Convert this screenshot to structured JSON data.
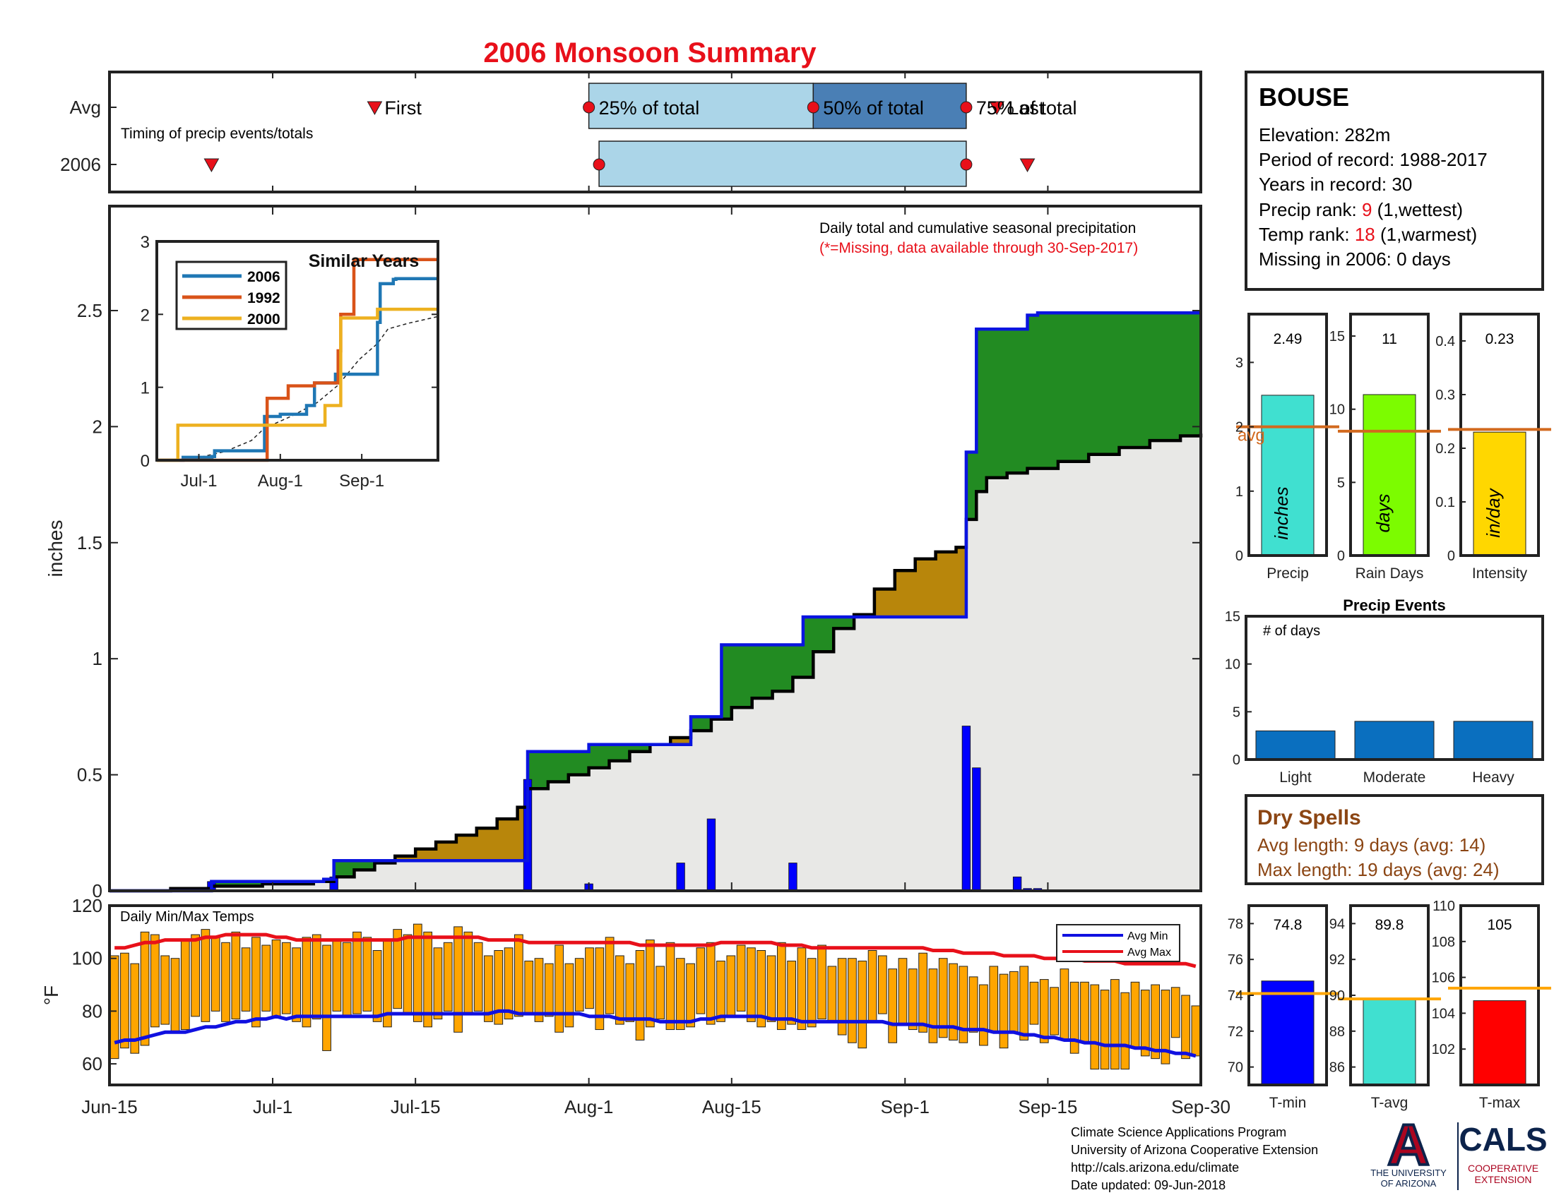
{
  "page": {
    "title": "2006 Monsoon Summary",
    "footer_lines": [
      "Climate Science Applications Program",
      "University of Arizona Cooperative Extension",
      "http://cals.arizona.edu/climate",
      " Date updated: 09-Jun-2018"
    ],
    "logo_ua": {
      "letter": "A",
      "line1": "THE UNIVERSITY",
      "line2": "OF ARIZONA"
    },
    "logo_cals": {
      "big": "CALS",
      "line1": "COOPERATIVE",
      "line2": "EXTENSION"
    },
    "colors": {
      "title": "#e8101a",
      "red_text": "#e8101a",
      "brown_text": "#8b4513"
    }
  },
  "station": {
    "name": "BOUSE",
    "lines": [
      "Elevation: 282m",
      "Period of record: 1988-2017",
      "Years in record: 30"
    ],
    "precip_rank_label": "Precip rank: ",
    "precip_rank_value": "9",
    "precip_rank_note": " (1,wettest)",
    "temp_rank_label": "Temp rank: ",
    "temp_rank_value": "18",
    "temp_rank_note": " (1,warmest)",
    "missing": "Missing in 2006: 0 days"
  },
  "chart_data": [
    {
      "id": "timing",
      "type": "bar",
      "title": "Timing of precip events/totals",
      "yticks": [
        "Avg",
        "2006"
      ],
      "x_unit": "day of season (0 = Jun-15, 107 = Sep-30)",
      "avg": {
        "first": 26,
        "q25": 47,
        "q50": 69,
        "q75": 84,
        "last": 87
      },
      "y2006": {
        "first": 10,
        "q25": 48,
        "q75": 84,
        "last": 90
      },
      "labels": {
        "first": "First",
        "q25": "25% of total",
        "q50": "50% of total",
        "q75": "75% of total",
        "last": "Last"
      }
    },
    {
      "id": "main-precip",
      "type": "area",
      "title": "Daily total and cumulative seasonal precipitation",
      "subtitle": "(*=Missing, data available through 30-Sep-2017)",
      "ylabel": "inches",
      "xlim": [
        0,
        107
      ],
      "ylim": [
        0,
        2.95
      ],
      "yticks": [
        0,
        0.5,
        1,
        1.5,
        2,
        2.5
      ],
      "xticks": [
        {
          "day": 0,
          "label": "Jun-15"
        },
        {
          "day": 16,
          "label": "Jul-1"
        },
        {
          "day": 30,
          "label": "Jul-15"
        },
        {
          "day": 47,
          "label": "Aug-1"
        },
        {
          "day": 61,
          "label": "Aug-15"
        },
        {
          "day": 78,
          "label": "Sep-1"
        },
        {
          "day": 92,
          "label": "Sep-15"
        },
        {
          "day": 107,
          "label": "Sep-30"
        }
      ],
      "cumulative_2006": [
        [
          0,
          0
        ],
        [
          10,
          0.04
        ],
        [
          21,
          0.05
        ],
        [
          22,
          0.13
        ],
        [
          40,
          0.13
        ],
        [
          41,
          0.6
        ],
        [
          47,
          0.63
        ],
        [
          56,
          0.63
        ],
        [
          57,
          0.75
        ],
        [
          59,
          0.75
        ],
        [
          60,
          1.06
        ],
        [
          67,
          1.06
        ],
        [
          68,
          1.18
        ],
        [
          83,
          1.18
        ],
        [
          84,
          1.89
        ],
        [
          85,
          2.42
        ],
        [
          89,
          2.42
        ],
        [
          90,
          2.48
        ],
        [
          91,
          2.49
        ],
        [
          107,
          2.49
        ]
      ],
      "cumulative_avg": [
        [
          0,
          0
        ],
        [
          6,
          0.01
        ],
        [
          10,
          0.02
        ],
        [
          15,
          0.03
        ],
        [
          20,
          0.04
        ],
        [
          22,
          0.06
        ],
        [
          24,
          0.09
        ],
        [
          26,
          0.12
        ],
        [
          28,
          0.15
        ],
        [
          30,
          0.18
        ],
        [
          32,
          0.21
        ],
        [
          34,
          0.24
        ],
        [
          36,
          0.27
        ],
        [
          38,
          0.31
        ],
        [
          40,
          0.36
        ],
        [
          41,
          0.44
        ],
        [
          43,
          0.47
        ],
        [
          45,
          0.5
        ],
        [
          47,
          0.53
        ],
        [
          49,
          0.56
        ],
        [
          51,
          0.6
        ],
        [
          53,
          0.63
        ],
        [
          55,
          0.66
        ],
        [
          57,
          0.69
        ],
        [
          59,
          0.74
        ],
        [
          61,
          0.79
        ],
        [
          63,
          0.83
        ],
        [
          65,
          0.86
        ],
        [
          67,
          0.92
        ],
        [
          69,
          1.03
        ],
        [
          71,
          1.13
        ],
        [
          73,
          1.19
        ],
        [
          75,
          1.3
        ],
        [
          77,
          1.38
        ],
        [
          79,
          1.43
        ],
        [
          81,
          1.46
        ],
        [
          83,
          1.48
        ],
        [
          84,
          1.6
        ],
        [
          85,
          1.72
        ],
        [
          86,
          1.78
        ],
        [
          88,
          1.8
        ],
        [
          90,
          1.82
        ],
        [
          93,
          1.85
        ],
        [
          96,
          1.88
        ],
        [
          99,
          1.91
        ],
        [
          102,
          1.94
        ],
        [
          105,
          1.96
        ],
        [
          107,
          1.97
        ]
      ],
      "daily_precip": [
        [
          10,
          0.04
        ],
        [
          22,
          0.06
        ],
        [
          41,
          0.48
        ],
        [
          47,
          0.03
        ],
        [
          56,
          0.12
        ],
        [
          59,
          0.31
        ],
        [
          67,
          0.12
        ],
        [
          84,
          0.71
        ],
        [
          85,
          0.53
        ],
        [
          89,
          0.06
        ],
        [
          90,
          0.01
        ],
        [
          91,
          0.01
        ]
      ]
    },
    {
      "id": "similar-years",
      "type": "line",
      "title": "Similar Years",
      "xlim": [
        0,
        107
      ],
      "ylim": [
        0,
        3
      ],
      "yticks": [
        0,
        1,
        2,
        3
      ],
      "xticks": [
        {
          "day": 16,
          "label": "Jul-1"
        },
        {
          "day": 47,
          "label": "Aug-1"
        },
        {
          "day": 78,
          "label": "Sep-1"
        }
      ],
      "series": [
        {
          "name": "2006",
          "color": "#1f77b4",
          "points": [
            [
              0,
              0
            ],
            [
              10,
              0.04
            ],
            [
              21,
              0.05
            ],
            [
              22,
              0.13
            ],
            [
              40,
              0.13
            ],
            [
              41,
              0.6
            ],
            [
              47,
              0.63
            ],
            [
              56,
              0.63
            ],
            [
              57,
              0.75
            ],
            [
              59,
              0.75
            ],
            [
              60,
              1.06
            ],
            [
              67,
              1.06
            ],
            [
              68,
              1.18
            ],
            [
              83,
              1.18
            ],
            [
              84,
              1.89
            ],
            [
              85,
              2.42
            ],
            [
              89,
              2.42
            ],
            [
              90,
              2.48
            ],
            [
              91,
              2.49
            ],
            [
              107,
              2.49
            ]
          ]
        },
        {
          "name": "1992",
          "color": "#d95319",
          "points": [
            [
              0,
              0
            ],
            [
              41,
              0
            ],
            [
              42,
              0.85
            ],
            [
              48,
              0.85
            ],
            [
              50,
              1.02
            ],
            [
              58,
              1.02
            ],
            [
              60,
              1.06
            ],
            [
              68,
              1.06
            ],
            [
              69,
              1.5
            ],
            [
              70,
              2.0
            ],
            [
              74,
              2.0
            ],
            [
              75,
              2.75
            ],
            [
              107,
              2.75
            ]
          ]
        },
        {
          "name": "2000",
          "color": "#edb120",
          "points": [
            [
              0,
              0
            ],
            [
              7,
              0
            ],
            [
              8,
              0.48
            ],
            [
              63,
              0.48
            ],
            [
              64,
              0.75
            ],
            [
              69,
              0.75
            ],
            [
              70,
              1.95
            ],
            [
              84,
              2.07
            ],
            [
              107,
              2.07
            ]
          ]
        }
      ],
      "average": [
        [
          0,
          0
        ],
        [
          15,
          0.03
        ],
        [
          26,
          0.12
        ],
        [
          36,
          0.27
        ],
        [
          41,
          0.44
        ],
        [
          51,
          0.6
        ],
        [
          61,
          0.79
        ],
        [
          69,
          1.03
        ],
        [
          77,
          1.38
        ],
        [
          84,
          1.6
        ],
        [
          88,
          1.8
        ],
        [
          96,
          1.88
        ],
        [
          107,
          1.97
        ]
      ]
    },
    {
      "id": "precip-bars",
      "type": "bar",
      "categories": [
        "Precip",
        "Rain Days",
        "Intensity"
      ],
      "panels": [
        {
          "label": "Precip",
          "value": 2.49,
          "value_text": "2.49",
          "avg": 2.0,
          "ylim": [
            0,
            3.75
          ],
          "yticks": [
            0,
            1,
            2,
            3
          ],
          "unit": "inches",
          "color": "#40e0d0",
          "avg_label": "avg"
        },
        {
          "label": "Rain Days",
          "value": 11,
          "value_text": "11",
          "avg": 8.5,
          "ylim": [
            0,
            16.5
          ],
          "yticks": [
            0,
            5,
            10,
            15
          ],
          "unit": "days",
          "color": "#7cfc00"
        },
        {
          "label": "Intensity",
          "value": 0.23,
          "value_text": "0.23",
          "avg": 0.235,
          "ylim": [
            0,
            0.45
          ],
          "yticks": [
            0,
            0.1,
            0.2,
            0.3,
            0.4
          ],
          "unit": "in/day",
          "color": "#ffd700"
        }
      ]
    },
    {
      "id": "precip-events",
      "type": "bar",
      "title": "Precip Events",
      "ylabel": "# of days",
      "categories": [
        "Light",
        "Moderate",
        "Heavy"
      ],
      "values": [
        3,
        4,
        4
      ],
      "ylim": [
        0,
        15
      ],
      "yticks": [
        0,
        5,
        10,
        15
      ]
    },
    {
      "id": "temps",
      "type": "bar",
      "title": "Daily Min/Max Temps",
      "ylabel": "°F",
      "ylim": [
        52,
        120
      ],
      "yticks": [
        60,
        80,
        100,
        120
      ],
      "xlim": [
        0,
        107
      ],
      "legend": [
        "Avg Min",
        "Avg Max"
      ],
      "daily_min": [
        62,
        66,
        64,
        67,
        74,
        75,
        72,
        73,
        78,
        76,
        80,
        76,
        77,
        80,
        74,
        80,
        78,
        79,
        76,
        74,
        77,
        65,
        80,
        78,
        79,
        80,
        76,
        74,
        81,
        79,
        76,
        74,
        77,
        80,
        72,
        79,
        80,
        76,
        75,
        77,
        78,
        79,
        76,
        78,
        72,
        74,
        80,
        81,
        73,
        79,
        75,
        76,
        69,
        74,
        77,
        73,
        73,
        74,
        79,
        75,
        76,
        78,
        80,
        76,
        74,
        76,
        73,
        75,
        73,
        74,
        77,
        76,
        71,
        68,
        66,
        76,
        79,
        68,
        75,
        73,
        72,
        68,
        70,
        69,
        68,
        72,
        67,
        72,
        66,
        72,
        69,
        75,
        68,
        71,
        69,
        64,
        68,
        58,
        58,
        58,
        58,
        66,
        63,
        62,
        60,
        70,
        62,
        63
      ],
      "daily_max": [
        101,
        102,
        98,
        110,
        109,
        101,
        100,
        107,
        109,
        111,
        108,
        106,
        110,
        104,
        108,
        105,
        107,
        106,
        104,
        108,
        109,
        105,
        107,
        106,
        110,
        108,
        103,
        107,
        111,
        109,
        113,
        110,
        104,
        106,
        112,
        110,
        106,
        101,
        103,
        104,
        109,
        99,
        100,
        98,
        105,
        98,
        100,
        104,
        104,
        108,
        101,
        98,
        103,
        107,
        97,
        106,
        100,
        98,
        104,
        106,
        99,
        101,
        105,
        104,
        103,
        101,
        106,
        99,
        104,
        100,
        105,
        97,
        100,
        100,
        99,
        103,
        101,
        96,
        100,
        96,
        102,
        96,
        100,
        98,
        97,
        93,
        90,
        97,
        94,
        95,
        97,
        91,
        92,
        89,
        96,
        91,
        91,
        90,
        88,
        92,
        87,
        91,
        88,
        90,
        88,
        89,
        86,
        82
      ],
      "avg_min": [
        68,
        69,
        69,
        70,
        71,
        72,
        72,
        72,
        73,
        74,
        74,
        75,
        76,
        76,
        77,
        77,
        78,
        77,
        78,
        78,
        78,
        78,
        78,
        78,
        78,
        78,
        78,
        79,
        79,
        79,
        79,
        79,
        79,
        79,
        79,
        79,
        79,
        79,
        80,
        80,
        79,
        79,
        79,
        79,
        79,
        79,
        79,
        78,
        78,
        78,
        77,
        77,
        77,
        77,
        76,
        76,
        76,
        76,
        77,
        77,
        78,
        78,
        78,
        78,
        78,
        77,
        77,
        77,
        76,
        76,
        76,
        76,
        76,
        76,
        76,
        76,
        76,
        75,
        75,
        75,
        75,
        74,
        74,
        74,
        73,
        73,
        73,
        72,
        72,
        72,
        71,
        71,
        70,
        70,
        69,
        69,
        68,
        68,
        67,
        67,
        67,
        66,
        66,
        65,
        65,
        64,
        64,
        63
      ],
      "avg_max": [
        104,
        104,
        105,
        106,
        106,
        107,
        107,
        107,
        107,
        108,
        108,
        109,
        109,
        109,
        109,
        109,
        108,
        108,
        107,
        107,
        107,
        107,
        107,
        107,
        107,
        107,
        107,
        107,
        107,
        108,
        108,
        108,
        108,
        108,
        108,
        108,
        108,
        107,
        107,
        107,
        107,
        106,
        106,
        106,
        106,
        106,
        106,
        106,
        106,
        106,
        106,
        106,
        105,
        105,
        105,
        105,
        105,
        105,
        105,
        105,
        106,
        106,
        106,
        106,
        106,
        106,
        105,
        105,
        105,
        104,
        104,
        104,
        104,
        104,
        104,
        104,
        104,
        104,
        104,
        104,
        104,
        103,
        103,
        103,
        102,
        102,
        102,
        102,
        101,
        101,
        101,
        101,
        100,
        100,
        100,
        100,
        99,
        99,
        99,
        99,
        98,
        98,
        98,
        98,
        98,
        98,
        98,
        97
      ]
    },
    {
      "id": "temp-bars",
      "type": "bar",
      "categories": [
        "T-min",
        "T-avg",
        "T-max"
      ],
      "panels": [
        {
          "label": "T-min",
          "value": 74.8,
          "value_text": "74.8",
          "avg": 74.1,
          "ylim": [
            69,
            79
          ],
          "yticks": [
            70,
            72,
            74,
            76,
            78
          ],
          "color": "#0000ff"
        },
        {
          "label": "T-avg",
          "value": 89.8,
          "value_text": "89.8",
          "avg": 89.8,
          "ylim": [
            85,
            95
          ],
          "yticks": [
            86,
            88,
            90,
            92,
            94
          ],
          "color": "#40e0d0"
        },
        {
          "label": "T-max",
          "value": 104.7,
          "value_text": "105",
          "avg": 105.4,
          "ylim": [
            100,
            110
          ],
          "yticks": [
            102,
            104,
            106,
            108,
            110
          ],
          "color": "#ff0000"
        }
      ]
    }
  ],
  "dry_spells": {
    "title": "Dry Spells",
    "avg_line": "Avg length: 9 days (avg: 14)",
    "max_line": "Max length: 19 days (avg: 24)"
  }
}
